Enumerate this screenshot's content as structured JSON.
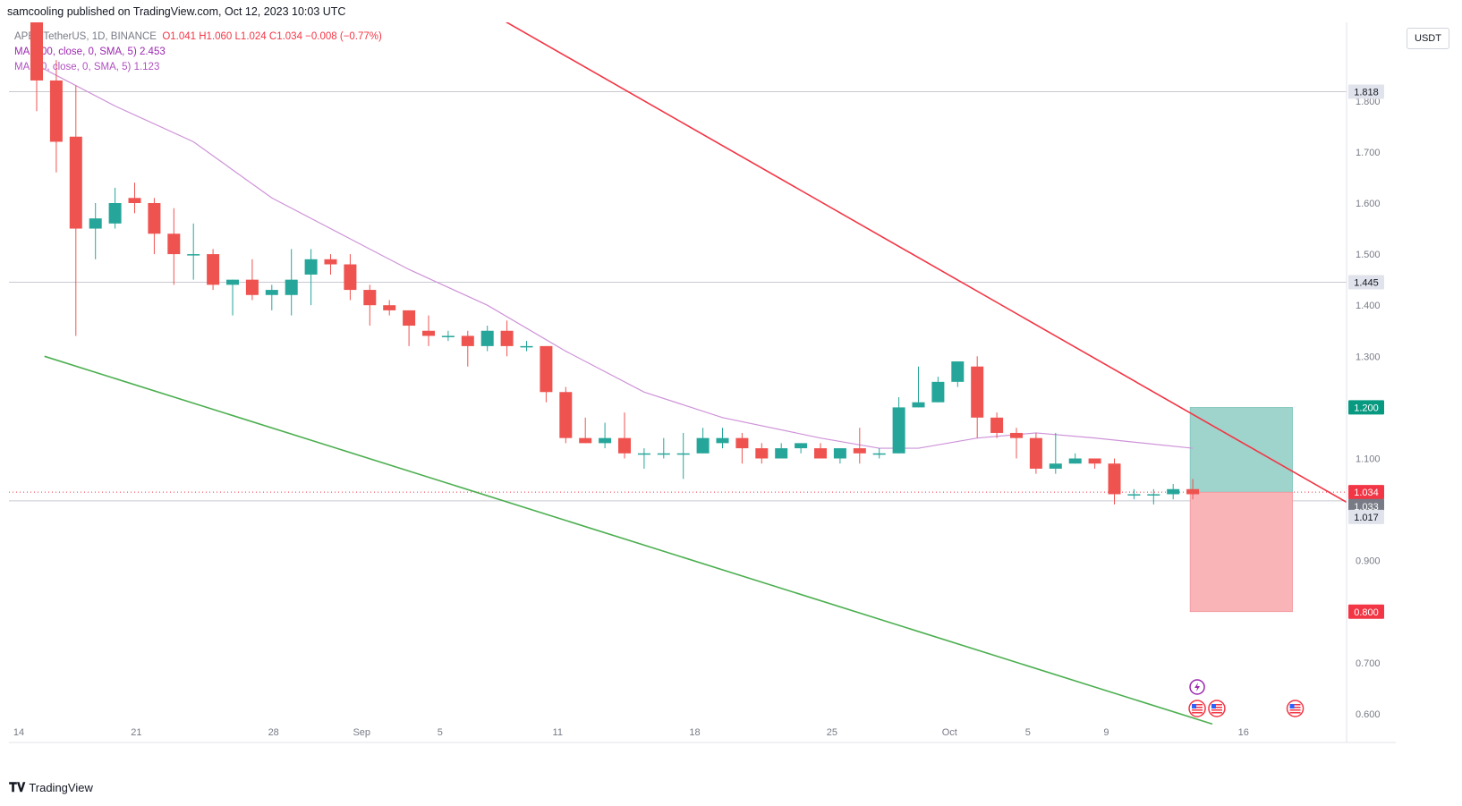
{
  "header": {
    "published": "samcooling published on TradingView.com, Oct 12, 2023 10:03 UTC"
  },
  "legend": {
    "symbol": "APE / TetherUS, 1D, BINANCE",
    "ohlc": "O1.041  H1.060  L1.024  C1.034  −0.008 (−0.77%)",
    "ma200": "MA (200, close, 0, SMA, 5)  2.453",
    "ma20": "MA (20, close, 0, SMA, 5)  1.123"
  },
  "unit_button": "USDT",
  "footer": {
    "brand": "TradingView",
    "logo_icon": "tradingview-logo-icon"
  },
  "colors": {
    "up": "#26a69a",
    "down": "#ef5350",
    "ma": "#ce93d8",
    "resistance": "#f23645",
    "support": "#4caf50",
    "target_zone": "#9ed4cc",
    "stop_zone": "#f9b4b8"
  },
  "chart_data": {
    "type": "candlestick",
    "ylim": [
      0.57,
      2.0
    ],
    "y_ticks": [
      "0.600",
      "0.700",
      "0.800",
      "0.900",
      "1.100",
      "1.200",
      "1.300",
      "1.400",
      "1.500",
      "1.600",
      "1.700",
      "1.800"
    ],
    "x_ticks": [
      "14",
      "21",
      "28",
      "Sep",
      "5",
      "11",
      "18",
      "25",
      "Oct",
      "5",
      "9",
      "16"
    ],
    "price_labels": [
      {
        "value": 1.818,
        "text": "1.818",
        "style": "grey"
      },
      {
        "value": 1.445,
        "text": "1.445",
        "style": "grey"
      },
      {
        "value": 1.2,
        "text": "1.200",
        "style": "green"
      },
      {
        "value": 1.034,
        "text": "1.034",
        "style": "red"
      },
      {
        "value": 1.033,
        "text": "1.033",
        "style": "dark"
      },
      {
        "value": 1.017,
        "text": "1.017",
        "style": "grey"
      },
      {
        "value": 0.8,
        "text": "0.800",
        "style": "red"
      }
    ],
    "horizontal_lines": [
      1.818,
      1.445,
      1.017
    ],
    "current_price": 1.034,
    "position": {
      "entry": 1.034,
      "target": 1.2,
      "stop": 0.8,
      "start_index": 59,
      "end_index": 64
    },
    "ohlc": [
      [
        2.0,
        2.05,
        1.78,
        1.84
      ],
      [
        1.84,
        1.88,
        1.66,
        1.72
      ],
      [
        1.73,
        1.83,
        1.34,
        1.55
      ],
      [
        1.55,
        1.6,
        1.49,
        1.57
      ],
      [
        1.56,
        1.63,
        1.55,
        1.6
      ],
      [
        1.61,
        1.64,
        1.58,
        1.6
      ],
      [
        1.6,
        1.61,
        1.5,
        1.54
      ],
      [
        1.54,
        1.59,
        1.44,
        1.5
      ],
      [
        1.5,
        1.56,
        1.45,
        1.5
      ],
      [
        1.5,
        1.51,
        1.43,
        1.44
      ],
      [
        1.44,
        1.45,
        1.38,
        1.45
      ],
      [
        1.45,
        1.49,
        1.41,
        1.42
      ],
      [
        1.42,
        1.44,
        1.39,
        1.43
      ],
      [
        1.42,
        1.51,
        1.38,
        1.45
      ],
      [
        1.46,
        1.51,
        1.4,
        1.49
      ],
      [
        1.49,
        1.5,
        1.46,
        1.48
      ],
      [
        1.48,
        1.5,
        1.41,
        1.43
      ],
      [
        1.43,
        1.44,
        1.36,
        1.4
      ],
      [
        1.4,
        1.41,
        1.38,
        1.39
      ],
      [
        1.39,
        1.39,
        1.32,
        1.36
      ],
      [
        1.35,
        1.38,
        1.32,
        1.34
      ],
      [
        1.34,
        1.35,
        1.33,
        1.34
      ],
      [
        1.34,
        1.35,
        1.28,
        1.32
      ],
      [
        1.32,
        1.36,
        1.31,
        1.35
      ],
      [
        1.35,
        1.37,
        1.3,
        1.32
      ],
      [
        1.32,
        1.33,
        1.31,
        1.32
      ],
      [
        1.32,
        1.32,
        1.21,
        1.23
      ],
      [
        1.23,
        1.24,
        1.13,
        1.14
      ],
      [
        1.14,
        1.18,
        1.13,
        1.13
      ],
      [
        1.13,
        1.17,
        1.12,
        1.14
      ],
      [
        1.14,
        1.19,
        1.1,
        1.11
      ],
      [
        1.11,
        1.12,
        1.08,
        1.11
      ],
      [
        1.11,
        1.14,
        1.1,
        1.11
      ],
      [
        1.11,
        1.15,
        1.06,
        1.11
      ],
      [
        1.11,
        1.16,
        1.11,
        1.14
      ],
      [
        1.13,
        1.16,
        1.12,
        1.14
      ],
      [
        1.14,
        1.15,
        1.09,
        1.12
      ],
      [
        1.12,
        1.13,
        1.09,
        1.1
      ],
      [
        1.1,
        1.13,
        1.1,
        1.12
      ],
      [
        1.12,
        1.13,
        1.11,
        1.13
      ],
      [
        1.12,
        1.13,
        1.1,
        1.1
      ],
      [
        1.1,
        1.12,
        1.09,
        1.12
      ],
      [
        1.12,
        1.16,
        1.09,
        1.11
      ],
      [
        1.11,
        1.12,
        1.1,
        1.11
      ],
      [
        1.11,
        1.22,
        1.11,
        1.2
      ],
      [
        1.2,
        1.28,
        1.2,
        1.21
      ],
      [
        1.21,
        1.26,
        1.21,
        1.25
      ],
      [
        1.25,
        1.29,
        1.24,
        1.29
      ],
      [
        1.28,
        1.3,
        1.14,
        1.18
      ],
      [
        1.18,
        1.19,
        1.14,
        1.15
      ],
      [
        1.15,
        1.16,
        1.1,
        1.14
      ],
      [
        1.14,
        1.15,
        1.07,
        1.08
      ],
      [
        1.08,
        1.15,
        1.07,
        1.09
      ],
      [
        1.09,
        1.11,
        1.09,
        1.1
      ],
      [
        1.1,
        1.1,
        1.08,
        1.09
      ],
      [
        1.09,
        1.1,
        1.01,
        1.03
      ],
      [
        1.03,
        1.04,
        1.02,
        1.03
      ],
      [
        1.03,
        1.04,
        1.01,
        1.03
      ],
      [
        1.03,
        1.05,
        1.02,
        1.04
      ],
      [
        1.04,
        1.06,
        1.02,
        1.03
      ]
    ],
    "ma20": [
      [
        0,
        1.87
      ],
      [
        4,
        1.79
      ],
      [
        8,
        1.72
      ],
      [
        12,
        1.61
      ],
      [
        16,
        1.53
      ],
      [
        19,
        1.47
      ],
      [
        23,
        1.4
      ],
      [
        27,
        1.31
      ],
      [
        31,
        1.23
      ],
      [
        35,
        1.18
      ],
      [
        40,
        1.14
      ],
      [
        43,
        1.12
      ],
      [
        45,
        1.12
      ],
      [
        48,
        1.14
      ],
      [
        51,
        1.15
      ],
      [
        54,
        1.14
      ],
      [
        59,
        1.12
      ]
    ],
    "trendlines": [
      {
        "name": "resistance",
        "from": [
          19.6,
          2.05
        ],
        "to": [
          67.5,
          1.0
        ]
      },
      {
        "name": "support",
        "from": [
          0.4,
          1.3
        ],
        "to": [
          60.0,
          0.58
        ]
      }
    ],
    "event_markers": [
      {
        "index": 59.5,
        "icon": "lightning-icon"
      },
      {
        "index": 59.5,
        "icon": "us-flag-icon"
      },
      {
        "index": 60.5,
        "icon": "us-flag-icon"
      },
      {
        "index": 64.5,
        "icon": "us-flag-icon"
      }
    ]
  }
}
